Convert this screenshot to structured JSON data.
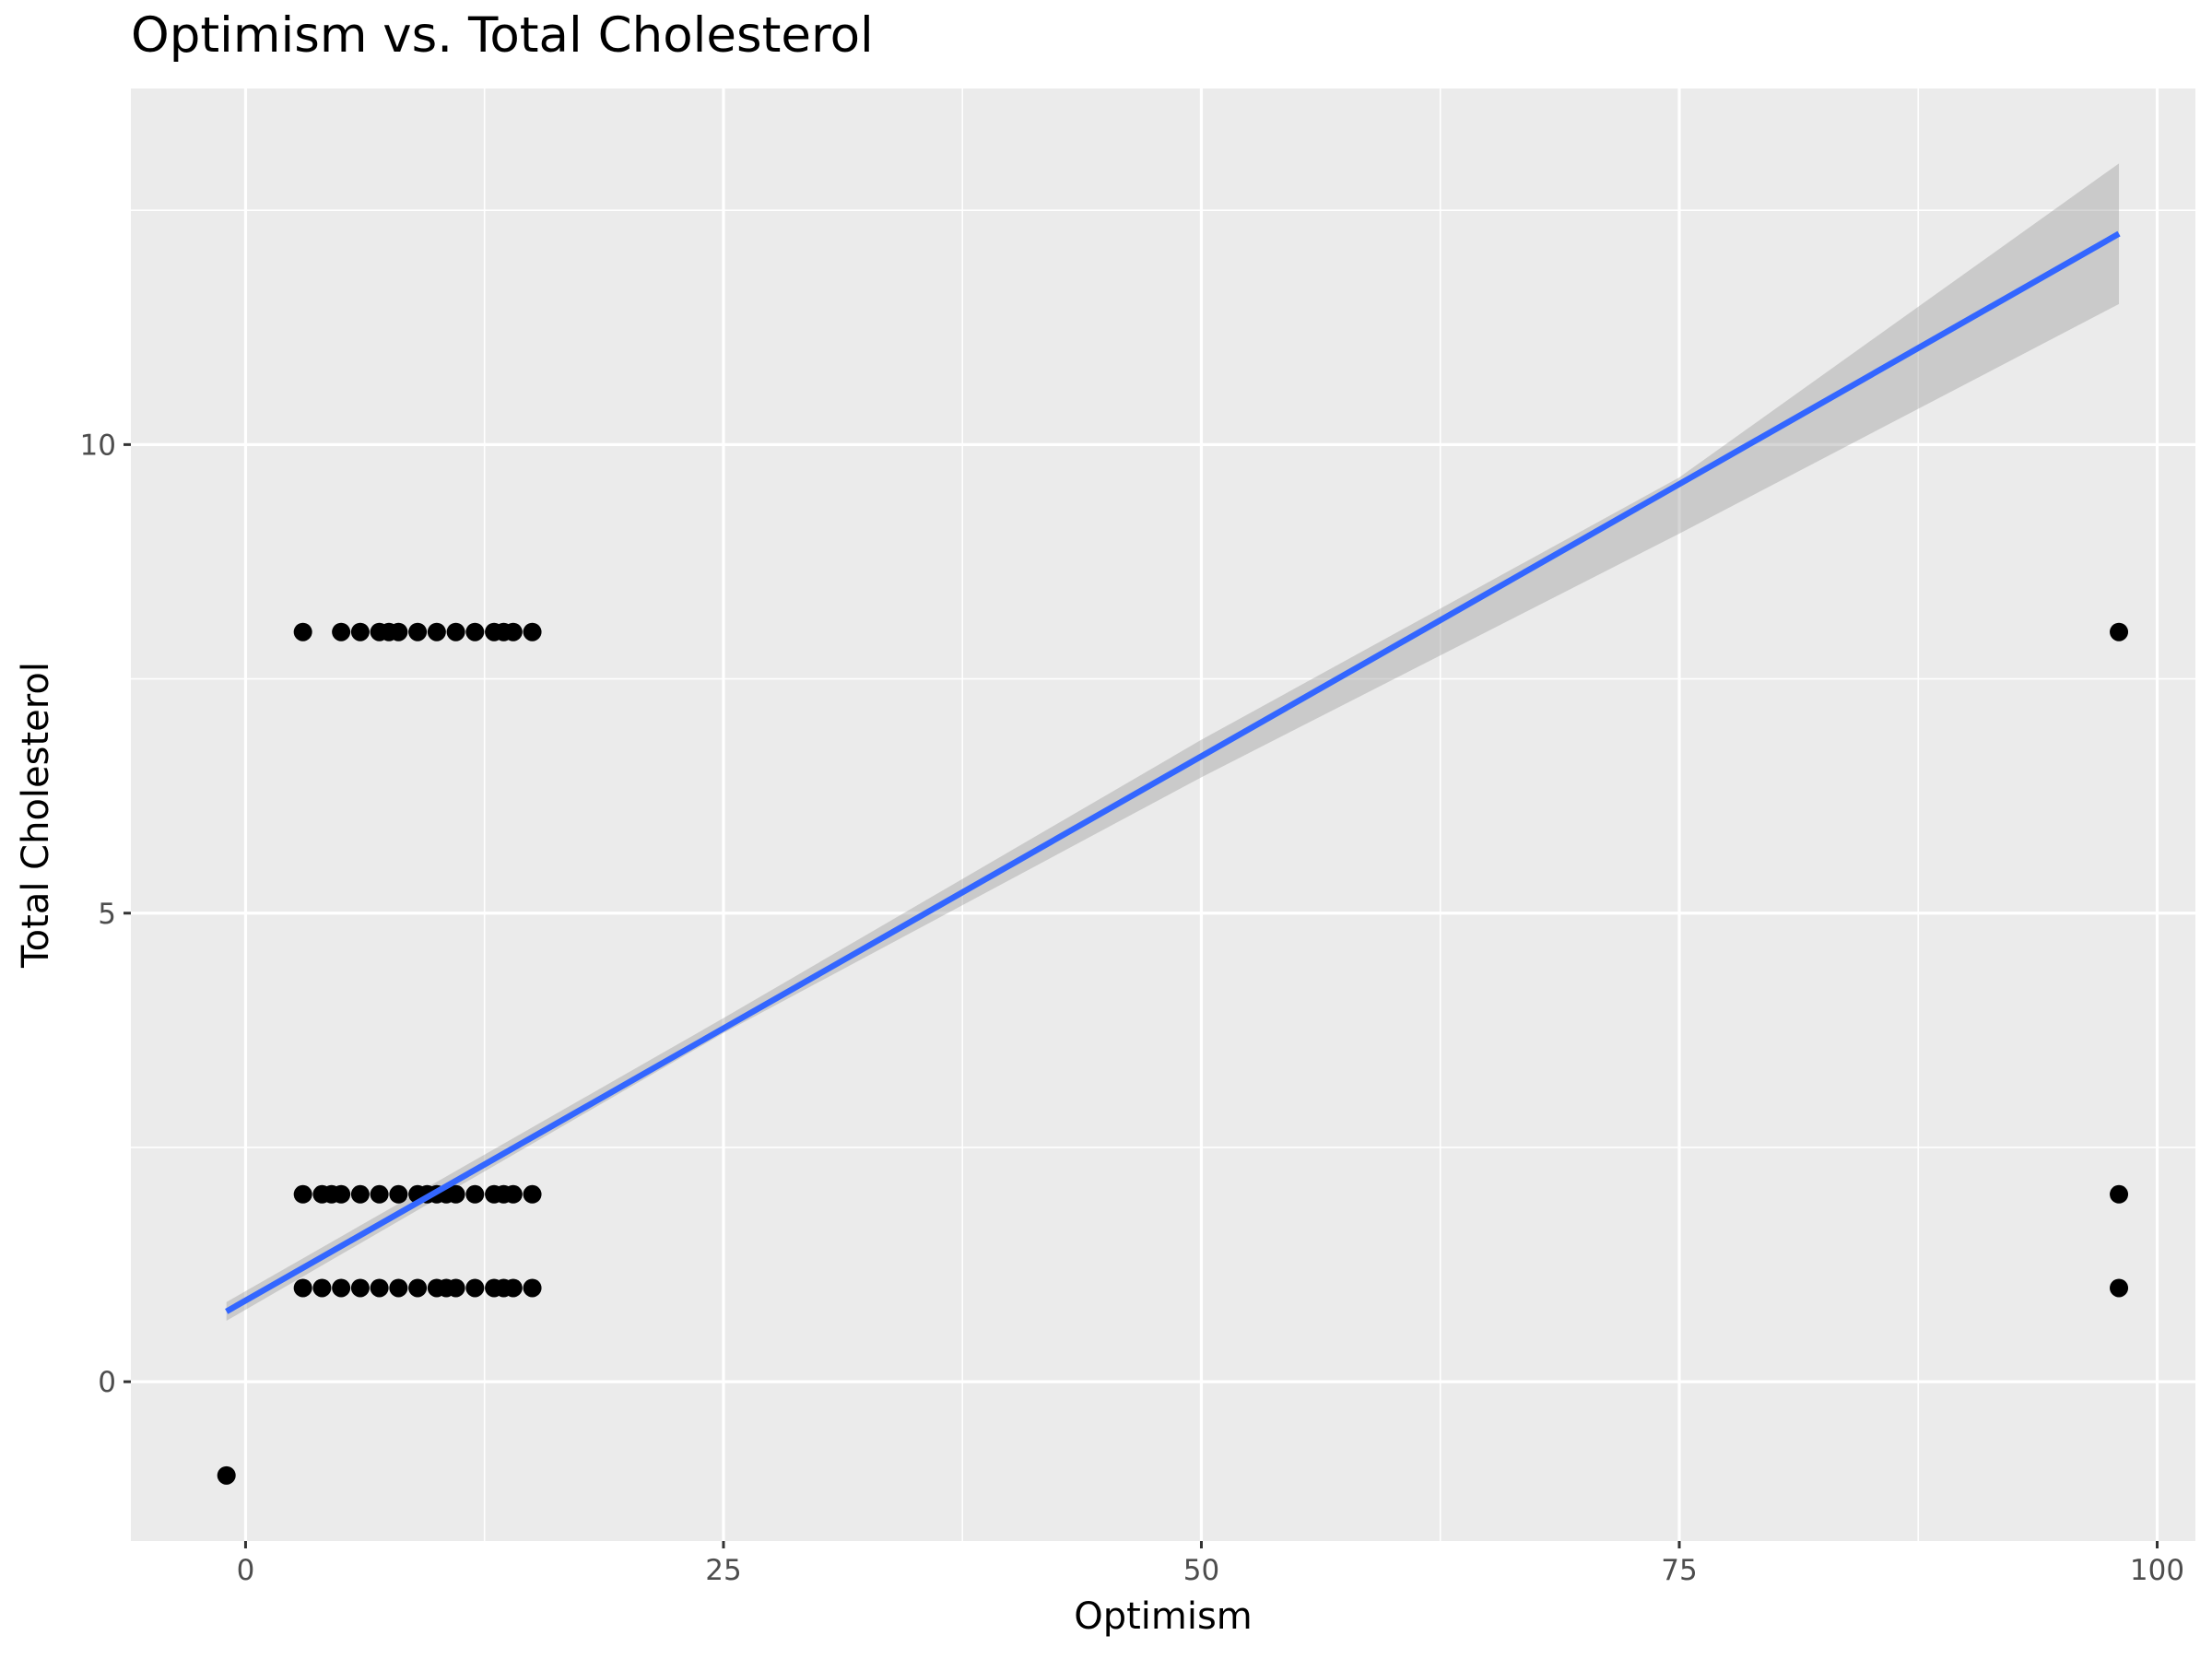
{
  "chart_data": {
    "type": "scatter",
    "title": "Optimism vs. Total Cholesterol",
    "xlabel": "Optimism",
    "ylabel": "Total Cholesterol",
    "xlim": [
      -6,
      102
    ],
    "ylim": [
      -1.7,
      13.8
    ],
    "x_ticks": [
      0,
      25,
      50,
      75,
      100
    ],
    "x_tick_labels": [
      "0",
      "25",
      "50",
      "75",
      "100"
    ],
    "x_minor_ticks": [
      -12.5,
      12.5,
      37.5,
      62.5,
      87.5
    ],
    "y_ticks": [
      0,
      5,
      10
    ],
    "y_tick_labels": [
      "0",
      "5",
      "10"
    ],
    "y_minor_ticks": [
      -2.5,
      2.5,
      7.5,
      12.5
    ],
    "grid": true,
    "points": [
      {
        "x": -1,
        "y": -1
      },
      {
        "x": 3,
        "y": 8
      },
      {
        "x": 5,
        "y": 8
      },
      {
        "x": 6,
        "y": 8
      },
      {
        "x": 7,
        "y": 8
      },
      {
        "x": 7.5,
        "y": 8
      },
      {
        "x": 8,
        "y": 8
      },
      {
        "x": 9,
        "y": 8
      },
      {
        "x": 10,
        "y": 8
      },
      {
        "x": 11,
        "y": 8
      },
      {
        "x": 12,
        "y": 8
      },
      {
        "x": 13,
        "y": 8
      },
      {
        "x": 13.5,
        "y": 8
      },
      {
        "x": 14,
        "y": 8
      },
      {
        "x": 15,
        "y": 8
      },
      {
        "x": 3,
        "y": 2
      },
      {
        "x": 4,
        "y": 2
      },
      {
        "x": 4.5,
        "y": 2
      },
      {
        "x": 5,
        "y": 2
      },
      {
        "x": 6,
        "y": 2
      },
      {
        "x": 7,
        "y": 2
      },
      {
        "x": 8,
        "y": 2
      },
      {
        "x": 9,
        "y": 2
      },
      {
        "x": 9.5,
        "y": 2
      },
      {
        "x": 10,
        "y": 2
      },
      {
        "x": 10.5,
        "y": 2
      },
      {
        "x": 11,
        "y": 2
      },
      {
        "x": 12,
        "y": 2
      },
      {
        "x": 13,
        "y": 2
      },
      {
        "x": 13.5,
        "y": 2
      },
      {
        "x": 14,
        "y": 2
      },
      {
        "x": 15,
        "y": 2
      },
      {
        "x": 3,
        "y": 1
      },
      {
        "x": 4,
        "y": 1
      },
      {
        "x": 5,
        "y": 1
      },
      {
        "x": 6,
        "y": 1
      },
      {
        "x": 7,
        "y": 1
      },
      {
        "x": 8,
        "y": 1
      },
      {
        "x": 9,
        "y": 1
      },
      {
        "x": 10,
        "y": 1
      },
      {
        "x": 10.5,
        "y": 1
      },
      {
        "x": 11,
        "y": 1
      },
      {
        "x": 12,
        "y": 1
      },
      {
        "x": 13,
        "y": 1
      },
      {
        "x": 13.5,
        "y": 1
      },
      {
        "x": 14,
        "y": 1
      },
      {
        "x": 15,
        "y": 1
      },
      {
        "x": 98,
        "y": 8
      },
      {
        "x": 98,
        "y": 2
      },
      {
        "x": 98,
        "y": 1
      }
    ],
    "fit_line": {
      "method": "linear",
      "x": [
        -1,
        98
      ],
      "y": [
        0.75,
        12.25
      ],
      "color": "#3366FF"
    },
    "confidence_band": {
      "x": [
        -1,
        25,
        50,
        75,
        98
      ],
      "lower": [
        0.65,
        3.72,
        6.45,
        9.05,
        11.5
      ],
      "upper": [
        0.85,
        3.88,
        6.85,
        9.65,
        13.0
      ],
      "color": "#999999"
    },
    "colors": {
      "panel": "#EBEBEB",
      "grid": "#FFFFFF",
      "points": "#000000",
      "line": "#3366FF"
    }
  }
}
